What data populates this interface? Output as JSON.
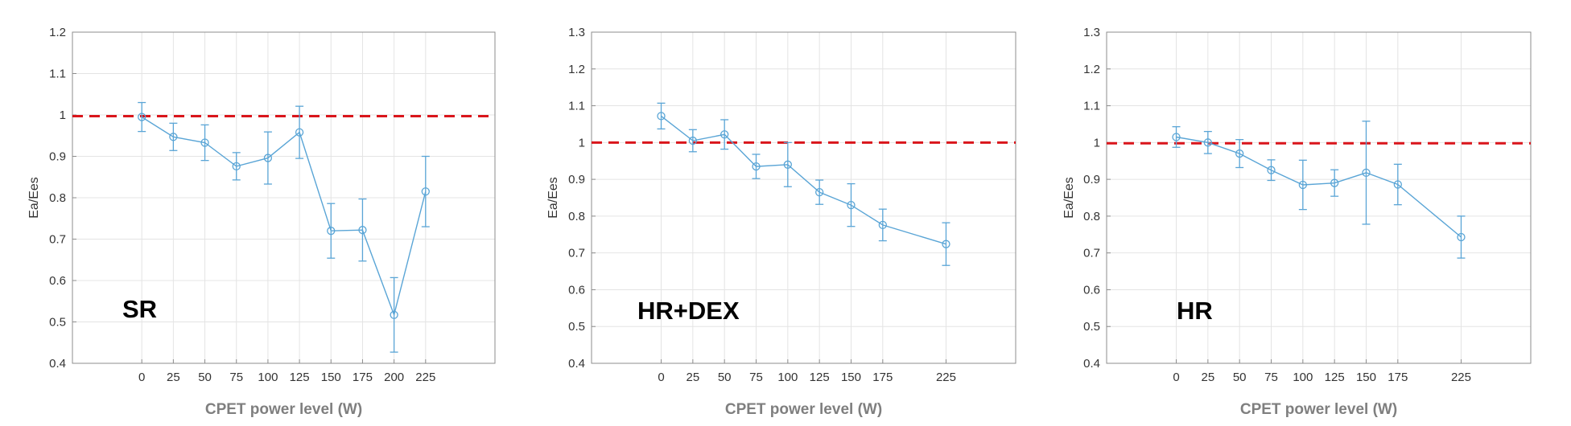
{
  "colors": {
    "series": "#5aa5d6",
    "reference": "#d9151b",
    "grid": "#e4e4e4",
    "axis": "#8c8c8c"
  },
  "chart_data": [
    {
      "type": "line",
      "title": "",
      "panel_label": "SR",
      "xlabel": "CPET power level (W)",
      "ylabel": "Ea/Ees",
      "ylim": [
        0.4,
        1.2
      ],
      "yticks": [
        0.4,
        0.5,
        0.6,
        0.7,
        0.8,
        0.9,
        1,
        1.1,
        1.2
      ],
      "ytick_labels": [
        "0.4",
        "0.5",
        "0.6",
        "0.7",
        "0.8",
        "0.9",
        "1",
        "1.1",
        "1.2"
      ],
      "xlim": [
        -55,
        280
      ],
      "xticks": [
        0,
        25,
        50,
        75,
        100,
        125,
        150,
        175,
        200,
        225
      ],
      "x": [
        0,
        25,
        50,
        75,
        100,
        125,
        150,
        175,
        200,
        225
      ],
      "y": [
        0.995,
        0.947,
        0.933,
        0.876,
        0.896,
        0.958,
        0.72,
        0.722,
        0.517,
        0.815
      ],
      "err_lo": [
        0.035,
        0.033,
        0.043,
        0.033,
        0.063,
        0.063,
        0.066,
        0.075,
        0.09,
        0.085
      ],
      "err_hi": [
        0.035,
        0.033,
        0.043,
        0.033,
        0.063,
        0.063,
        0.066,
        0.075,
        0.09,
        0.085
      ],
      "reference_line": 0.997,
      "grid": true
    },
    {
      "type": "line",
      "title": "",
      "panel_label": "HR+DEX",
      "xlabel": "CPET power level (W)",
      "ylabel": "Ea/Ees",
      "ylim": [
        0.4,
        1.3
      ],
      "yticks": [
        0.4,
        0.5,
        0.6,
        0.7,
        0.8,
        0.9,
        1,
        1.1,
        1.2,
        1.3
      ],
      "ytick_labels": [
        "0.4",
        "0.5",
        "0.6",
        "0.7",
        "0.8",
        "0.9",
        "1",
        "1.1",
        "1.2",
        "1.3"
      ],
      "xlim": [
        -55,
        280
      ],
      "xticks": [
        0,
        25,
        50,
        75,
        100,
        125,
        150,
        175,
        225
      ],
      "x": [
        0,
        25,
        50,
        75,
        100,
        125,
        150,
        175,
        225
      ],
      "y": [
        1.072,
        1.005,
        1.022,
        0.935,
        0.94,
        0.865,
        0.83,
        0.776,
        0.724
      ],
      "err_lo": [
        0.035,
        0.03,
        0.04,
        0.033,
        0.06,
        0.033,
        0.058,
        0.043,
        0.058
      ],
      "err_hi": [
        0.035,
        0.03,
        0.04,
        0.033,
        0.06,
        0.033,
        0.058,
        0.043,
        0.058
      ],
      "reference_line": 1.0,
      "grid": true
    },
    {
      "type": "line",
      "title": "",
      "panel_label": "HR",
      "xlabel": "CPET power level (W)",
      "ylabel": "Ea/Ees",
      "ylim": [
        0.4,
        1.3
      ],
      "yticks": [
        0.4,
        0.5,
        0.6,
        0.7,
        0.8,
        0.9,
        1,
        1.1,
        1.2,
        1.3
      ],
      "ytick_labels": [
        "0.4",
        "0.5",
        "0.6",
        "0.7",
        "0.8",
        "0.9",
        "1",
        "1.1",
        "1.2",
        "1.3"
      ],
      "xlim": [
        -55,
        280
      ],
      "xticks": [
        0,
        25,
        50,
        75,
        100,
        125,
        150,
        175,
        225
      ],
      "x": [
        0,
        25,
        50,
        75,
        100,
        125,
        150,
        175,
        225
      ],
      "y": [
        1.015,
        1.0,
        0.97,
        0.925,
        0.885,
        0.89,
        0.918,
        0.886,
        0.743
      ],
      "err_lo": [
        0.028,
        0.03,
        0.038,
        0.028,
        0.067,
        0.036,
        0.14,
        0.055,
        0.057
      ],
      "err_hi": [
        0.028,
        0.03,
        0.038,
        0.028,
        0.067,
        0.036,
        0.14,
        0.055,
        0.057
      ],
      "reference_line": 0.998,
      "grid": true
    }
  ]
}
